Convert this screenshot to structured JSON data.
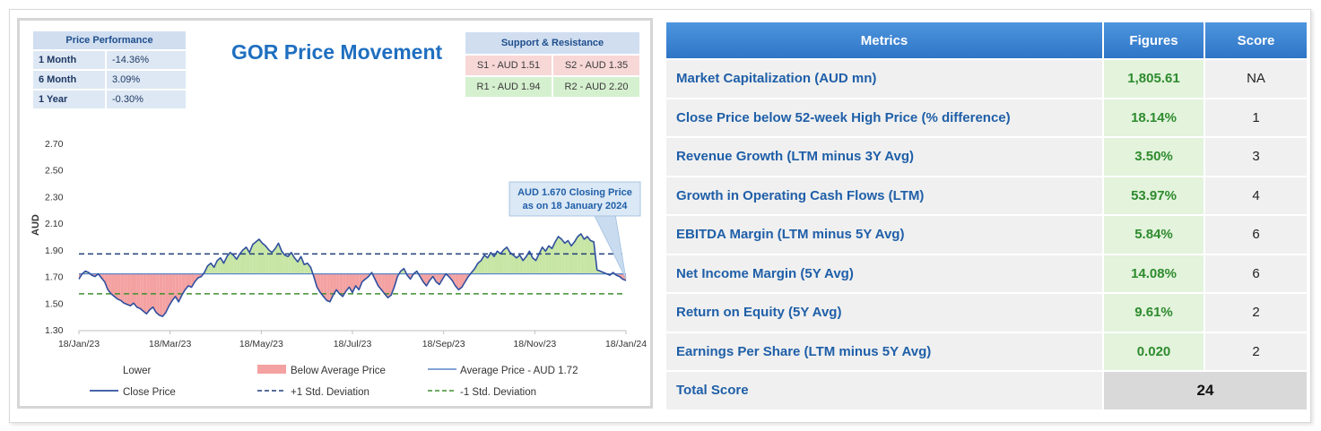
{
  "performance": {
    "header": "Price Performance",
    "rows": [
      {
        "period": "1 Month",
        "value": "-14.36%"
      },
      {
        "period": "6 Month",
        "value": "3.09%"
      },
      {
        "period": "1 Year",
        "value": "-0.30%"
      }
    ]
  },
  "support_resistance": {
    "header": "Support & Resistance",
    "s1": "S1 - AUD 1.51",
    "s2": "S2 - AUD 1.35",
    "r1": "R1 - AUD 1.94",
    "r2": "R2 - AUD 2.20"
  },
  "callout": {
    "line1": "AUD 1.670 Closing Price",
    "line2": "as on 18 January 2024"
  },
  "legend": {
    "lower": "Lower",
    "below_avg": "Below Average Price",
    "avg": "Average Price - AUD 1.72",
    "close": "Close Price",
    "plus_std": "+1 Std. Deviation",
    "minus_std": "-1 Std. Deviation"
  },
  "colors": {
    "close_line": "#2f4f9e",
    "below_fill": "#f4a1a1",
    "above_fill": "#c7e5a4",
    "avg_line": "#5a86c8",
    "plus_std": "#1f3f7a",
    "minus_std": "#3f8f2f"
  },
  "chart_data": {
    "type": "area",
    "title": "GOR Price Movement",
    "xlabel": "",
    "ylabel": "AUD",
    "ylim": [
      1.3,
      2.7
    ],
    "yticks": [
      "1.30",
      "1.50",
      "1.70",
      "1.90",
      "2.10",
      "2.30",
      "2.50",
      "2.70"
    ],
    "xticks": [
      "18/Jan/23",
      "18/Mar/23",
      "18/May/23",
      "18/Jul/23",
      "18/Sep/23",
      "18/Nov/23",
      "18/Jan/24"
    ],
    "average": 1.72,
    "plus_std": 1.87,
    "minus_std": 1.57,
    "series": [
      {
        "name": "Close Price",
        "values": [
          1.68,
          1.72,
          1.74,
          1.73,
          1.71,
          1.7,
          1.72,
          1.69,
          1.66,
          1.6,
          1.57,
          1.55,
          1.53,
          1.52,
          1.5,
          1.49,
          1.48,
          1.5,
          1.47,
          1.46,
          1.44,
          1.42,
          1.45,
          1.47,
          1.43,
          1.41,
          1.4,
          1.43,
          1.48,
          1.52,
          1.55,
          1.51,
          1.56,
          1.6,
          1.63,
          1.62,
          1.66,
          1.69,
          1.7,
          1.73,
          1.78,
          1.8,
          1.77,
          1.82,
          1.84,
          1.8,
          1.85,
          1.88,
          1.86,
          1.83,
          1.87,
          1.9,
          1.92,
          1.88,
          1.94,
          1.96,
          1.98,
          1.95,
          1.93,
          1.9,
          1.88,
          1.91,
          1.95,
          1.89,
          1.86,
          1.85,
          1.88,
          1.84,
          1.81,
          1.85,
          1.79,
          1.8,
          1.77,
          1.7,
          1.62,
          1.58,
          1.55,
          1.52,
          1.51,
          1.56,
          1.6,
          1.57,
          1.55,
          1.59,
          1.62,
          1.58,
          1.63,
          1.6,
          1.66,
          1.68,
          1.7,
          1.73,
          1.68,
          1.63,
          1.6,
          1.57,
          1.54,
          1.56,
          1.62,
          1.7,
          1.74,
          1.76,
          1.71,
          1.68,
          1.72,
          1.74,
          1.7,
          1.66,
          1.63,
          1.67,
          1.7,
          1.66,
          1.64,
          1.68,
          1.72,
          1.7,
          1.67,
          1.63,
          1.6,
          1.62,
          1.66,
          1.7,
          1.73,
          1.76,
          1.8,
          1.82,
          1.86,
          1.84,
          1.88,
          1.85,
          1.89,
          1.87,
          1.9,
          1.92,
          1.88,
          1.86,
          1.84,
          1.86,
          1.82,
          1.85,
          1.89,
          1.84,
          1.82,
          1.87,
          1.92,
          1.89,
          1.93,
          1.91,
          1.96,
          2.0,
          1.98,
          1.95,
          1.97,
          1.93,
          1.96,
          2.0,
          2.02,
          1.98,
          2.0,
          1.97,
          1.96,
          1.75,
          1.74,
          1.73,
          1.72,
          1.71,
          1.73,
          1.71,
          1.7,
          1.68,
          1.67
        ]
      }
    ]
  },
  "metrics": {
    "headers": [
      "Metrics",
      "Figures",
      "Score"
    ],
    "rows": [
      {
        "metric": "Market Capitalization (AUD mn)",
        "figure": "1,805.61",
        "score": "NA"
      },
      {
        "metric": "Close Price below 52-week High Price (% difference)",
        "figure": "18.14%",
        "score": "1"
      },
      {
        "metric": "Revenue Growth (LTM minus 3Y Avg)",
        "figure": "3.50%",
        "score": "3"
      },
      {
        "metric": "Growth in Operating Cash Flows (LTM)",
        "figure": "53.97%",
        "score": "4"
      },
      {
        "metric": "EBITDA Margin (LTM minus 5Y Avg)",
        "figure": "5.84%",
        "score": "6"
      },
      {
        "metric": "Net Income Margin (5Y Avg)",
        "figure": "14.08%",
        "score": "6"
      },
      {
        "metric": "Return on Equity (5Y Avg)",
        "figure": "9.61%",
        "score": "2"
      },
      {
        "metric": "Earnings Per Share (LTM minus 5Y Avg)",
        "figure": "0.020",
        "score": "2"
      }
    ],
    "total_label": "Total Score",
    "total_value": "24"
  }
}
